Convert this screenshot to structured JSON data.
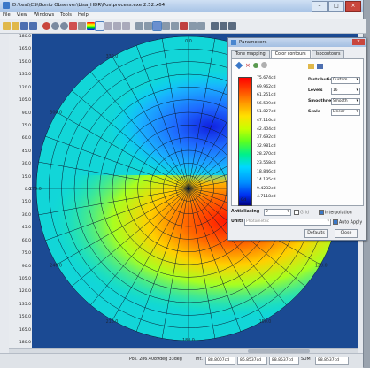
{
  "app": {
    "title": "D:\\test\\CS\\Gonio Observer\\Lisa_HDR\\Postprocess.exe 2.52.x64"
  },
  "menu": [
    "File",
    "View",
    "Windows",
    "Tools",
    "Help"
  ],
  "polar": {
    "angle_labels": [
      "0.0",
      "30.0",
      "60.0",
      "90.0",
      "120.0",
      "150.0",
      "180.0",
      "210.0",
      "240.0",
      "270.0",
      "300.0",
      "330.0"
    ],
    "y_ticks": [
      "180.0",
      "165.0",
      "150.0",
      "135.0",
      "120.0",
      "105.0",
      "90.0",
      "75.0",
      "60.0",
      "45.0",
      "30.0",
      "15.0",
      "0.0",
      "15.0",
      "30.0",
      "45.0",
      "60.0",
      "75.0",
      "90.0",
      "105.0",
      "120.0",
      "135.0",
      "150.0",
      "165.0",
      "180.0"
    ]
  },
  "parameters": {
    "title": "Parameters",
    "tabs": [
      "Tone mapping",
      "Color contours",
      "Isocontours"
    ],
    "levels": [
      "75.674cd",
      "69.962cd",
      "61.251cd",
      "56.539cd",
      "51.827cd",
      "47.116cd",
      "42.404cd",
      "37.692cd",
      "32.981cd",
      "28.270cd",
      "23.558cd",
      "18.846cd",
      "14.135cd",
      "9.4232cd",
      "4.7118cd"
    ],
    "legend_unit": "Cd",
    "fields": [
      {
        "label": "Distribution",
        "value": "Custom"
      },
      {
        "label": "Levels",
        "value": "16"
      },
      {
        "label": "Smoothness",
        "value": "Smooth"
      },
      {
        "label": "Scale",
        "value": "Linear"
      }
    ],
    "antialiasing_label": "Antialiasing",
    "antialiasing_value": "0",
    "grid_label": "Grid",
    "interpolation_label": "Interpolation",
    "units_label": "Units",
    "units_value": "Photometric",
    "auto_apply_label": "Auto Apply",
    "defaults_label": "Defaults",
    "close_label": "Close"
  },
  "status": {
    "pos": "Pos. 286.4089deg 33deg",
    "int_label": "Int.",
    "int_values": [
      "88.8007cd",
      "86.8537cd",
      "88.8537cd"
    ],
    "sum_label": "SUM",
    "sum_value": "88.8537cd"
  }
}
